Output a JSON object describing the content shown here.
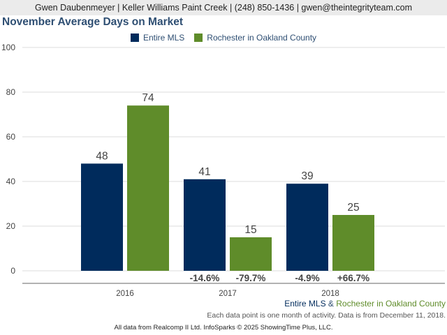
{
  "header": {
    "contact": "Gwen Daubenmeyer | Keller Williams Paint Creek | (248) 850-1436 | gwen@theintegrityteam.com"
  },
  "colors": {
    "entire_mls": "#002b5c",
    "rochester": "#5f8c2a",
    "title": "#2f4f73",
    "grid": "#dddddd",
    "axis": "#666666",
    "label": "#444444"
  },
  "chart_data": {
    "type": "bar",
    "title": "November Average Days on Market",
    "categories": [
      "2016",
      "2017",
      "2018"
    ],
    "series": [
      {
        "name": "Entire MLS",
        "values": [
          48,
          41,
          39
        ],
        "changes": [
          "",
          "-14.6%",
          "-4.9%"
        ]
      },
      {
        "name": "Rochester in Oakland County",
        "values": [
          74,
          15,
          25
        ],
        "changes": [
          "",
          "-79.7%",
          "+66.7%"
        ]
      }
    ],
    "ylim": [
      0,
      100
    ],
    "yticks": [
      0,
      20,
      40,
      60,
      80,
      100
    ],
    "xlabel": "",
    "ylabel": "",
    "grid": true,
    "legend": "top-center"
  },
  "footer": {
    "legend_part1": "Entire MLS",
    "legend_amp": " & ",
    "legend_part2": "Rochester in Oakland County",
    "note": "Each data point is one month of activity. Data is from December 11, 2018.",
    "credit": "All data from Realcomp II Ltd. InfoSparks © 2025 ShowingTime Plus, LLC."
  }
}
